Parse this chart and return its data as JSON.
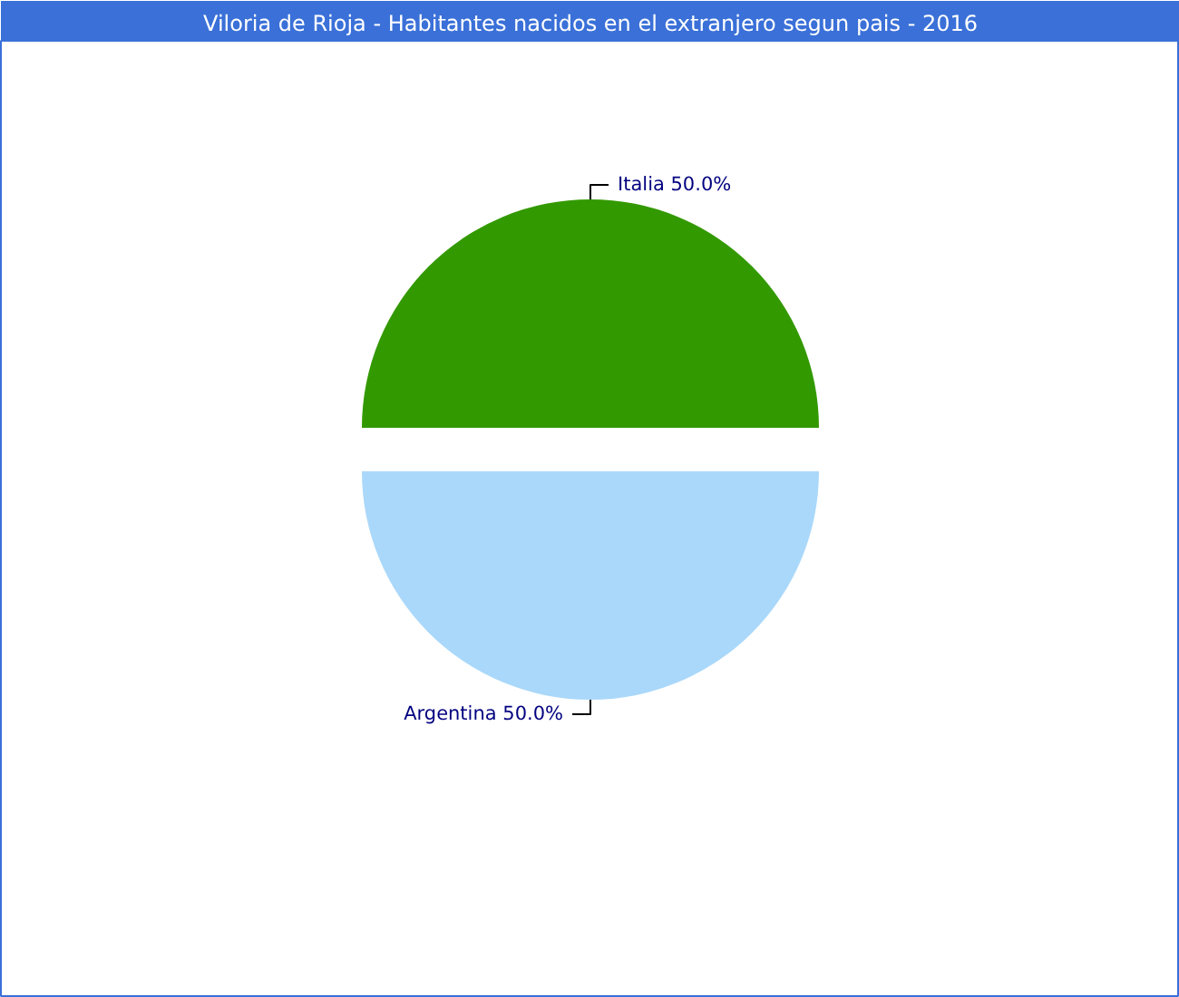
{
  "chart_data": {
    "type": "pie",
    "title": "Viloria de Rioja - Habitantes nacidos en el extranjero segun pais - 2016",
    "categories": [
      "Italia",
      "Argentina"
    ],
    "values": [
      50,
      50
    ],
    "colors": [
      "#339900",
      "#aad8fa"
    ],
    "value_labels": [
      "50.0%",
      "50.0%"
    ]
  }
}
